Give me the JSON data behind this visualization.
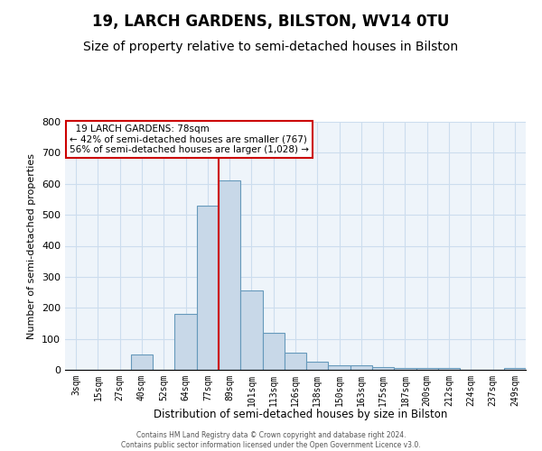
{
  "title": "19, LARCH GARDENS, BILSTON, WV14 0TU",
  "subtitle": "Size of property relative to semi-detached houses in Bilston",
  "xlabel": "Distribution of semi-detached houses by size in Bilston",
  "ylabel": "Number of semi-detached properties",
  "bar_labels": [
    "3sqm",
    "15sqm",
    "27sqm",
    "40sqm",
    "52sqm",
    "64sqm",
    "77sqm",
    "89sqm",
    "101sqm",
    "113sqm",
    "126sqm",
    "138sqm",
    "150sqm",
    "163sqm",
    "175sqm",
    "187sqm",
    "200sqm",
    "212sqm",
    "224sqm",
    "237sqm",
    "249sqm"
  ],
  "bar_values": [
    0,
    0,
    0,
    50,
    0,
    180,
    530,
    610,
    255,
    120,
    55,
    25,
    15,
    15,
    8,
    5,
    5,
    5,
    0,
    0,
    5
  ],
  "bar_color": "#c8d8e8",
  "bar_edge_color": "#6699bb",
  "property_line_x": 6.5,
  "property_label": "19 LARCH GARDENS: 78sqm",
  "smaller_pct": 42,
  "smaller_count": 767,
  "larger_pct": 56,
  "larger_count": 1028,
  "ylim": [
    0,
    800
  ],
  "yticks": [
    0,
    100,
    200,
    300,
    400,
    500,
    600,
    700,
    800
  ],
  "annotation_box_color": "#ffffff",
  "annotation_box_edge": "#cc0000",
  "red_line_color": "#cc0000",
  "grid_color": "#ccddee",
  "background_color": "#eef4fa",
  "title_fontsize": 12,
  "subtitle_fontsize": 10,
  "footer_line1": "Contains HM Land Registry data © Crown copyright and database right 2024.",
  "footer_line2": "Contains public sector information licensed under the Open Government Licence v3.0."
}
